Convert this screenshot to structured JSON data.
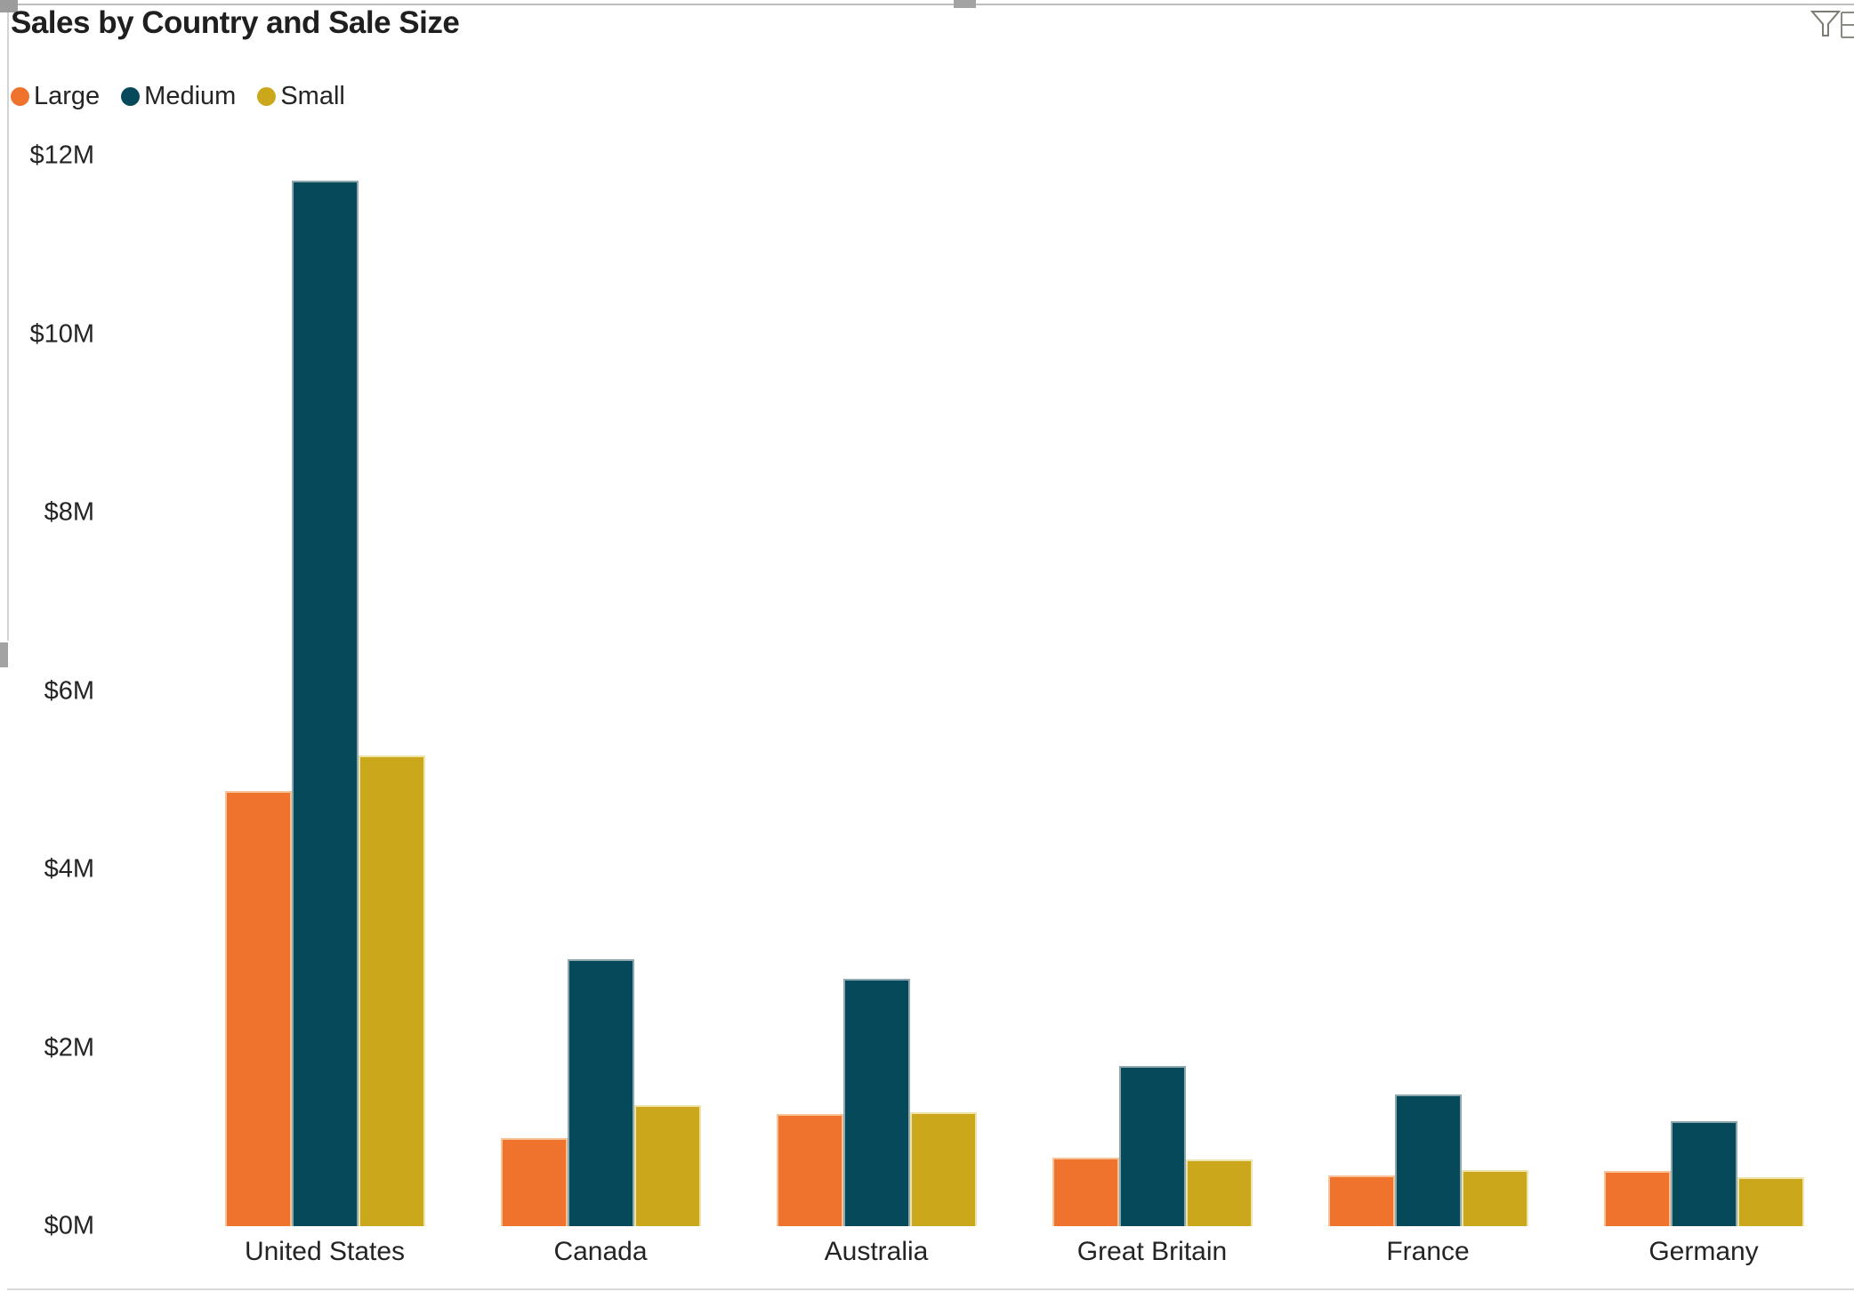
{
  "chart": {
    "title": "Sales by Country and Sale Size"
  },
  "toolbar": {
    "icons": [
      "filter-funnel",
      "clipped-visual-header-icon"
    ],
    "icon_color": "#7c7c72"
  },
  "legend": {
    "position": "top-left",
    "items": [
      {
        "label": "Large",
        "color": "#F0732D",
        "border": "#F7C296"
      },
      {
        "label": "Medium",
        "color": "#05495A",
        "border": "#8FA7AF"
      },
      {
        "label": "Small",
        "color": "#CBA71B",
        "border": "#EFE3AC"
      }
    ]
  },
  "chart_data": {
    "type": "bar",
    "title": "Sales by Country and Sale Size",
    "categories": [
      "United States",
      "Canada",
      "Australia",
      "Great Britain",
      "France",
      "Germany"
    ],
    "series": [
      {
        "name": "Large",
        "color": "#F0732D",
        "border": "#F7C296",
        "values": [
          4.88,
          0.99,
          1.26,
          0.77,
          0.57,
          0.62
        ]
      },
      {
        "name": "Medium",
        "color": "#05495A",
        "border": "#8FA7AF",
        "values": [
          11.72,
          2.99,
          2.77,
          1.8,
          1.48,
          1.18
        ]
      },
      {
        "name": "Small",
        "color": "#CBA71B",
        "border": "#EFE3AC",
        "values": [
          5.28,
          1.36,
          1.28,
          0.75,
          0.63,
          0.55
        ]
      }
    ],
    "xlabel": "",
    "ylabel": "",
    "unit": "$M",
    "ylim": [
      0,
      12
    ],
    "y_tick_values": [
      0,
      2,
      4,
      6,
      8,
      10,
      12
    ],
    "y_tick_labels": [
      "$0M",
      "$2M",
      "$4M",
      "$6M",
      "$8M",
      "$10M",
      "$12M"
    ],
    "grid": false,
    "legend_position": "top-left"
  }
}
